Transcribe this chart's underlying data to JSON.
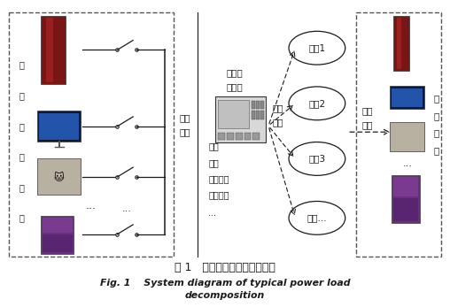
{
  "title_cn": "图 1   典型用电负荷分解结构图",
  "title_en_line1": "Fig. 1    System diagram of typical power load",
  "title_en_line2": "decomposition",
  "bg_color": "#ffffff",
  "classification_labels": [
    "分类1",
    "分类2",
    "分类3",
    "分类..."
  ]
}
